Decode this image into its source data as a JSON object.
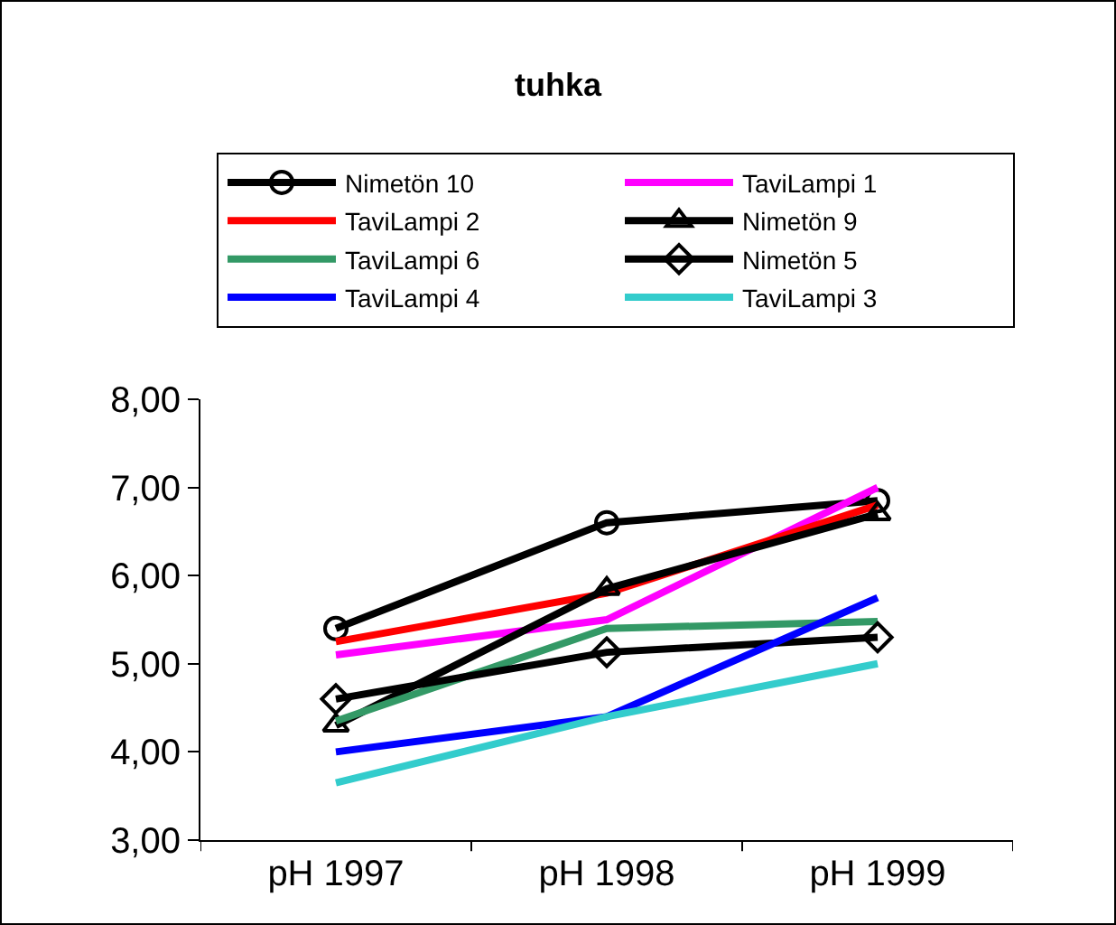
{
  "chart_data": {
    "type": "line",
    "title": "tuhka",
    "categories": [
      "pH 1997",
      "pH 1998",
      "pH 1999"
    ],
    "series": [
      {
        "name": "Nimetön 10",
        "color": "#000000",
        "marker": "circle",
        "values": [
          5.4,
          6.6,
          6.85
        ]
      },
      {
        "name": "TaviLampi 1",
        "color": "#ff00ff",
        "marker": "none",
        "values": [
          5.1,
          5.5,
          7.0
        ]
      },
      {
        "name": "TaviLampi 2",
        "color": "#ff0000",
        "marker": "none",
        "values": [
          5.25,
          5.8,
          6.8
        ]
      },
      {
        "name": "Nimetön 9",
        "color": "#000000",
        "marker": "triangle",
        "values": [
          4.3,
          5.85,
          6.7
        ]
      },
      {
        "name": "TaviLampi 6",
        "color": "#339966",
        "marker": "none",
        "values": [
          4.35,
          5.4,
          5.48
        ]
      },
      {
        "name": "Nimetön 5",
        "color": "#000000",
        "marker": "diamond",
        "values": [
          4.6,
          5.13,
          5.3
        ]
      },
      {
        "name": "TaviLampi 4",
        "color": "#0000ff",
        "marker": "none",
        "values": [
          4.0,
          4.4,
          5.75
        ]
      },
      {
        "name": "TaviLampi 3",
        "color": "#33cccc",
        "marker": "none",
        "values": [
          3.65,
          4.4,
          5.0
        ]
      }
    ],
    "ylim": [
      3,
      8
    ],
    "yticks": [
      {
        "value": 3,
        "label": "3,00"
      },
      {
        "value": 4,
        "label": "4,00"
      },
      {
        "value": 5,
        "label": "5,00"
      },
      {
        "value": 6,
        "label": "6,00"
      },
      {
        "value": 7,
        "label": "7,00"
      },
      {
        "value": 8,
        "label": "8,00"
      }
    ],
    "grid": false,
    "legend": "top"
  }
}
